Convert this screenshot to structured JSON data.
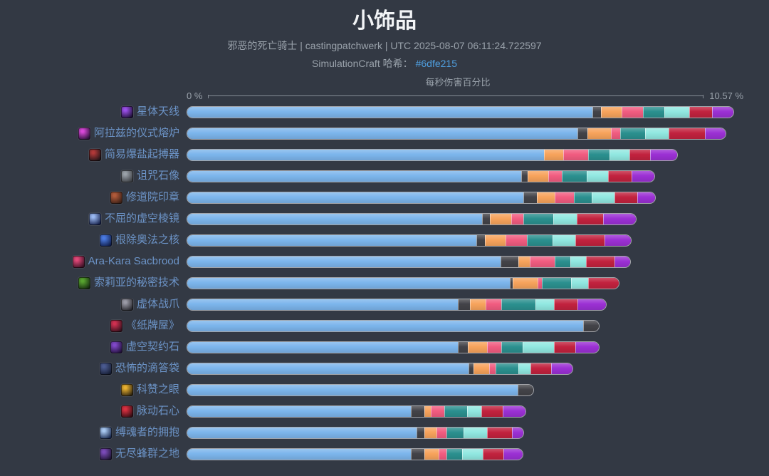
{
  "header": {
    "title": "小饰品",
    "subtitle": "邪恶的死亡骑士 | castingpatchwerk | UTC 2025-08-07 06:11:24.722597",
    "hash_label": "SimulationCraft 哈希：",
    "hash_value": "#6dfe215"
  },
  "axis": {
    "label": "每秒伤害百分比",
    "min_label": "0 %",
    "max_label": "10.57 %"
  },
  "colors": {
    "background": "#333944",
    "title_text": "#f2f4f6",
    "subtitle_text": "#9aa2ab",
    "link": "#4f9fe0",
    "bar_label": "#6c94c8",
    "axis_text": "#9aa2ab",
    "axis_line": "#868d96"
  },
  "chart_data": {
    "type": "bar",
    "orientation": "horizontal",
    "stacked": true,
    "title": "小饰品",
    "xlabel": "每秒伤害百分比",
    "xlim": [
      0,
      10.57
    ],
    "grid": false,
    "legend": "none",
    "categories": [
      {
        "label": "星体天线",
        "icon_colors": [
          "#1c1033",
          "#9a4fe8"
        ]
      },
      {
        "label": "阿拉兹的仪式熔炉",
        "icon_colors": [
          "#2a1038",
          "#d848d8"
        ]
      },
      {
        "label": "简易爆盐起搏器",
        "icon_colors": [
          "#201418",
          "#b03838"
        ]
      },
      {
        "label": "诅咒石像",
        "icon_colors": [
          "#3a3d42",
          "#9aa1a8"
        ]
      },
      {
        "label": "修道院印章",
        "icon_colors": [
          "#3a1f16",
          "#b05a3a"
        ]
      },
      {
        "label": "不屈的虚空棱镜",
        "icon_colors": [
          "#15204a",
          "#9ab8f0"
        ]
      },
      {
        "label": "根除奥法之核",
        "icon_colors": [
          "#0f1d4a",
          "#4a7ae0"
        ]
      },
      {
        "label": "Ara-Kara Sacbrood",
        "icon_colors": [
          "#3a1024",
          "#e04878"
        ]
      },
      {
        "label": "索莉亚的秘密技术",
        "icon_colors": [
          "#14290f",
          "#57a32f"
        ]
      },
      {
        "label": "虚体战爪",
        "icon_colors": [
          "#26262c",
          "#9a9aa6"
        ]
      },
      {
        "label": "《纸牌屋》",
        "icon_colors": [
          "#33101c",
          "#cf3050"
        ]
      },
      {
        "label": "虚空契约石",
        "icon_colors": [
          "#201038",
          "#8048c8"
        ]
      },
      {
        "label": "恐怖的滴答袋",
        "icon_colors": [
          "#161d33",
          "#4a5a8f"
        ]
      },
      {
        "label": "科赞之眼",
        "icon_colors": [
          "#2e2410",
          "#e8b030"
        ]
      },
      {
        "label": "脉动石心",
        "icon_colors": [
          "#330d14",
          "#d83040"
        ]
      },
      {
        "label": "缚魂者的拥抱",
        "icon_colors": [
          "#17264a",
          "#a8c8f0"
        ]
      },
      {
        "label": "无尽蜂群之地",
        "icon_colors": [
          "#1d1430",
          "#7a4ab8"
        ]
      }
    ],
    "series": [
      {
        "name": "blue",
        "color": "#7cb5ec",
        "values": [
          7.9,
          7.61,
          6.96,
          6.51,
          6.56,
          5.75,
          5.64,
          6.11,
          6.29,
          5.28,
          7.72,
          5.28,
          5.49,
          6.44,
          4.36,
          4.47,
          4.36
        ]
      },
      {
        "name": "dark",
        "color": "#434348",
        "values": [
          0.15,
          0.18,
          0.0,
          0.11,
          0.25,
          0.14,
          0.15,
          0.33,
          0.04,
          0.22,
          0.29,
          0.18,
          0.08,
          0.29,
          0.25,
          0.14,
          0.25
        ]
      },
      {
        "name": "orange",
        "color": "#f7a35c",
        "values": [
          0.4,
          0.44,
          0.36,
          0.4,
          0.33,
          0.4,
          0.39,
          0.22,
          0.47,
          0.29,
          0.0,
          0.36,
          0.29,
          0.0,
          0.11,
          0.22,
          0.26
        ]
      },
      {
        "name": "pink",
        "color": "#f15c80",
        "values": [
          0.4,
          0.18,
          0.47,
          0.25,
          0.36,
          0.22,
          0.4,
          0.47,
          0.07,
          0.29,
          0.0,
          0.26,
          0.11,
          0.0,
          0.25,
          0.18,
          0.14
        ]
      },
      {
        "name": "teal",
        "color": "#2b908f",
        "values": [
          0.4,
          0.47,
          0.4,
          0.47,
          0.33,
          0.58,
          0.49,
          0.29,
          0.56,
          0.65,
          0.0,
          0.4,
          0.43,
          0.0,
          0.44,
          0.33,
          0.29
        ]
      },
      {
        "name": "mint",
        "color": "#91e8e1",
        "values": [
          0.47,
          0.44,
          0.38,
          0.4,
          0.43,
          0.44,
          0.43,
          0.29,
          0.32,
          0.36,
          0.0,
          0.61,
          0.22,
          0.0,
          0.26,
          0.44,
          0.4
        ]
      },
      {
        "name": "red",
        "color": "#c2223e",
        "values": [
          0.44,
          0.69,
          0.39,
          0.44,
          0.44,
          0.5,
          0.56,
          0.54,
          0.58,
          0.44,
          0.0,
          0.4,
          0.4,
          0.0,
          0.4,
          0.47,
          0.38
        ]
      },
      {
        "name": "purple",
        "color": "#9b30d4",
        "values": [
          0.39,
          0.4,
          0.51,
          0.44,
          0.33,
          0.63,
          0.5,
          0.29,
          0.0,
          0.54,
          0.0,
          0.44,
          0.4,
          0.0,
          0.43,
          0.21,
          0.36
        ]
      }
    ]
  }
}
